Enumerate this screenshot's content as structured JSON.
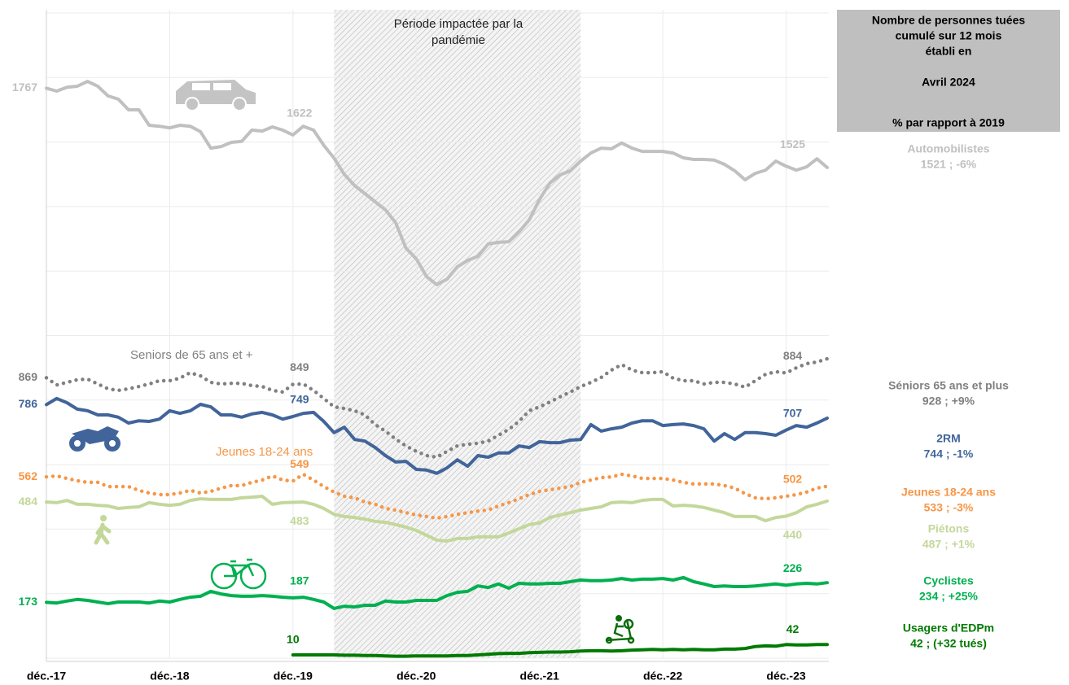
{
  "chart_data": {
    "type": "line",
    "panel_title_lines": [
      "Nombre de personnes tuées",
      "cumulé sur 12 mois",
      "établi en",
      "Avril 2024",
      "% par rapport à 2019"
    ],
    "band": {
      "start": 28,
      "end": 52,
      "label_lines": [
        "Période impactée par la",
        "pandémie"
      ]
    },
    "annotations": [
      "Seniors de 65 ans et +",
      "Jeunes 18-24 ans"
    ],
    "categories": [
      "déc.-17",
      null,
      null,
      null,
      null,
      null,
      null,
      null,
      null,
      null,
      null,
      null,
      "déc.-18",
      null,
      null,
      null,
      null,
      null,
      null,
      null,
      null,
      null,
      null,
      null,
      "déc.-19",
      null,
      null,
      null,
      null,
      null,
      null,
      null,
      null,
      null,
      null,
      null,
      "déc.-20",
      null,
      null,
      null,
      null,
      null,
      null,
      null,
      null,
      null,
      null,
      null,
      "déc.-21",
      null,
      null,
      null,
      null,
      null,
      null,
      null,
      null,
      null,
      null,
      null,
      "déc.-22",
      null,
      null,
      null,
      null,
      null,
      null,
      null,
      null,
      null,
      null,
      null,
      "déc.-23",
      null,
      null,
      null,
      null
    ],
    "ylim": [
      0,
      2000
    ],
    "yticks": [
      0,
      200,
      400,
      600,
      800,
      1000,
      1200,
      1400,
      1600,
      1800,
      2000
    ],
    "grid": true,
    "labeled_points": [
      0,
      24,
      72
    ],
    "series": [
      {
        "name": "Automobilistes",
        "summary": "1521 ; -6%",
        "color": "#c0c0c0",
        "style": "solid",
        "values": [
          1767,
          1758,
          1770,
          1773,
          1788,
          1773,
          1743,
          1733,
          1700,
          1700,
          1652,
          1649,
          1644,
          1652,
          1649,
          1632,
          1581,
          1586,
          1599,
          1602,
          1637,
          1634,
          1647,
          1637,
          1622,
          1649,
          1637,
          1590,
          1550,
          1500,
          1465,
          1440,
          1415,
          1390,
          1350,
          1271,
          1238,
          1183,
          1158,
          1175,
          1213,
          1233,
          1246,
          1284,
          1289,
          1291,
          1321,
          1359,
          1422,
          1473,
          1498,
          1511,
          1541,
          1566,
          1581,
          1579,
          1597,
          1581,
          1571,
          1571,
          1571,
          1566,
          1551,
          1546,
          1546,
          1544,
          1531,
          1511,
          1483,
          1503,
          1513,
          1541,
          1525,
          1513,
          1523,
          1548,
          1521
        ]
      },
      {
        "name": "Séniors 65 ans et plus",
        "summary": "928 ; +9%",
        "color": "#808080",
        "style": "dotted",
        "values": [
          869,
          847,
          855,
          863,
          865,
          850,
          835,
          830,
          835,
          842,
          850,
          860,
          860,
          868,
          885,
          875,
          855,
          850,
          852,
          852,
          845,
          842,
          830,
          825,
          849,
          850,
          830,
          805,
          779,
          774,
          767,
          754,
          724,
          704,
          679,
          658,
          641,
          628,
          623,
          641,
          658,
          663,
          666,
          673,
          691,
          709,
          734,
          767,
          779,
          794,
          810,
          825,
          842,
          855,
          870,
          893,
          910,
          893,
          885,
          885,
          888,
          868,
          860,
          860,
          850,
          855,
          855,
          850,
          840,
          860,
          880,
          888,
          884,
          900,
          913,
          918,
          928
        ]
      },
      {
        "name": "2RM",
        "summary": "744 ; -1%",
        "color": "#41659a",
        "style": "solid",
        "values": [
          786,
          805,
          792,
          772,
          767,
          754,
          754,
          747,
          729,
          736,
          734,
          741,
          767,
          759,
          767,
          787,
          779,
          754,
          754,
          747,
          757,
          762,
          754,
          741,
          749,
          759,
          762,
          734,
          699,
          716,
          678,
          673,
          653,
          628,
          608,
          610,
          585,
          583,
          573,
          590,
          615,
          595,
          628,
          623,
          636,
          636,
          658,
          653,
          671,
          668,
          668,
          676,
          678,
          724,
          704,
          711,
          716,
          729,
          736,
          736,
          721,
          724,
          726,
          721,
          711,
          673,
          696,
          678,
          699,
          699,
          696,
          691,
          707,
          721,
          716,
          729,
          744
        ]
      },
      {
        "name": "Jeunes 18-24 ans",
        "summary": "533 ; -3%",
        "color": "#f79646",
        "style": "dotted",
        "values": [
          562,
          565,
          557,
          550,
          545,
          545,
          532,
          532,
          532,
          520,
          512,
          507,
          507,
          512,
          520,
          512,
          517,
          527,
          535,
          535,
          545,
          552,
          565,
          552,
          549,
          570,
          552,
          532,
          515,
          502,
          497,
          484,
          477,
          464,
          459,
          451,
          444,
          439,
          434,
          439,
          446,
          451,
          456,
          459,
          472,
          482,
          494,
          507,
          517,
          522,
          527,
          532,
          545,
          552,
          560,
          562,
          570,
          565,
          557,
          557,
          557,
          552,
          545,
          540,
          540,
          540,
          535,
          527,
          510,
          497,
          494,
          497,
          502,
          507,
          515,
          527,
          533
        ]
      },
      {
        "name": "Piétons",
        "summary": "487 ; +1%",
        "color": "#c4d79b",
        "style": "solid",
        "values": [
          484,
          482,
          489,
          477,
          477,
          474,
          472,
          464,
          467,
          469,
          482,
          477,
          474,
          477,
          489,
          494,
          492,
          492,
          492,
          497,
          499,
          502,
          477,
          482,
          483,
          484,
          477,
          464,
          446,
          439,
          436,
          431,
          424,
          421,
          414,
          406,
          396,
          381,
          366,
          363,
          371,
          371,
          376,
          376,
          376,
          388,
          401,
          414,
          419,
          436,
          444,
          451,
          459,
          464,
          469,
          482,
          484,
          482,
          489,
          492,
          492,
          472,
          474,
          472,
          467,
          459,
          451,
          439,
          439,
          439,
          426,
          436,
          440,
          451,
          469,
          477,
          487
        ]
      },
      {
        "name": "Cyclistes",
        "summary": "234 ; +25%",
        "color": "#00b050",
        "style": "solid",
        "values": [
          173,
          171,
          177,
          182,
          179,
          174,
          169,
          174,
          174,
          174,
          171,
          177,
          174,
          182,
          189,
          192,
          207,
          199,
          194,
          192,
          192,
          194,
          192,
          189,
          187,
          189,
          182,
          174,
          154,
          161,
          159,
          164,
          164,
          177,
          174,
          174,
          179,
          179,
          179,
          194,
          204,
          207,
          224,
          219,
          230,
          217,
          232,
          230,
          230,
          232,
          232,
          237,
          242,
          240,
          240,
          242,
          247,
          242,
          245,
          245,
          247,
          242,
          250,
          237,
          230,
          222,
          224,
          222,
          222,
          224,
          227,
          230,
          226,
          230,
          232,
          230,
          234
        ]
      },
      {
        "name": "Usagers d'EDPm",
        "summary": "42 ; (+32 tués)",
        "color": "#007a00",
        "style": "solid",
        "values": [
          null,
          null,
          null,
          null,
          null,
          null,
          null,
          null,
          null,
          null,
          null,
          null,
          null,
          null,
          null,
          null,
          null,
          null,
          null,
          null,
          null,
          null,
          null,
          null,
          10,
          10,
          10,
          10,
          10,
          9,
          9,
          8,
          8,
          7,
          6,
          6,
          7,
          7,
          7,
          7,
          8,
          8,
          10,
          12,
          14,
          15,
          15,
          17,
          18,
          19,
          19,
          20,
          22,
          23,
          23,
          22,
          23,
          25,
          26,
          27,
          26,
          27,
          26,
          27,
          26,
          26,
          28,
          28,
          30,
          36,
          38,
          37,
          42,
          41,
          41,
          42,
          42
        ]
      }
    ]
  }
}
